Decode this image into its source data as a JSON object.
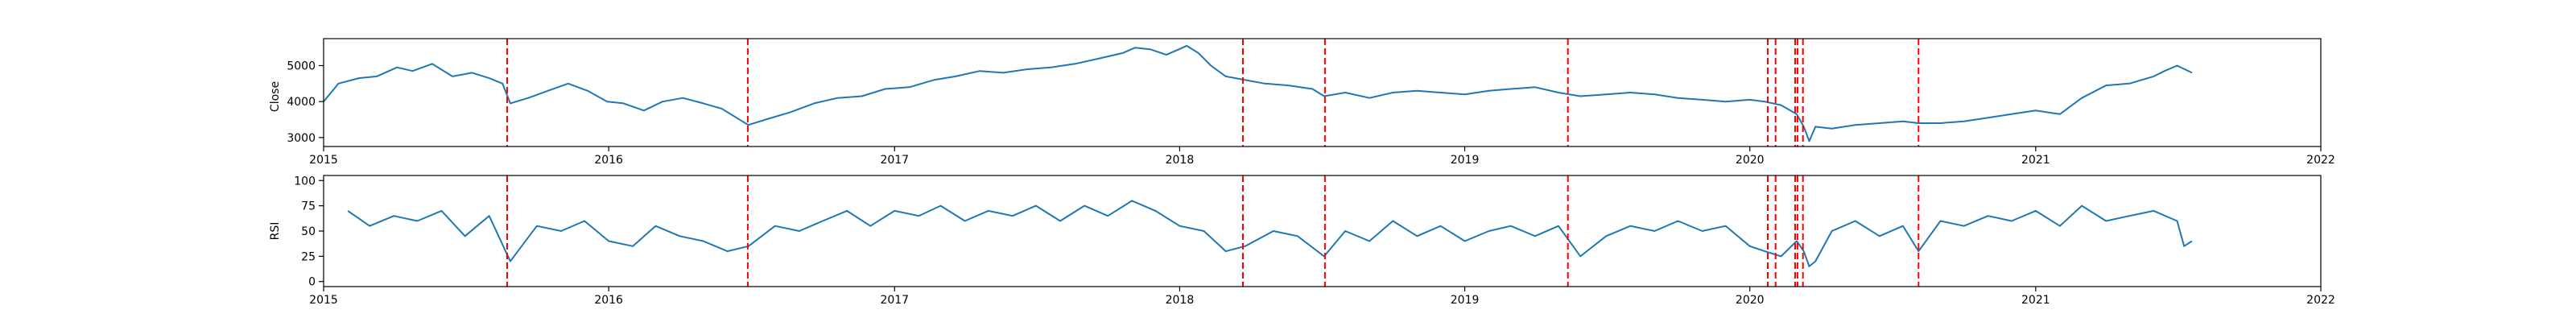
{
  "chart_data": [
    {
      "type": "line",
      "ylabel": "Close",
      "xlim": [
        "2015-01-01",
        "2022-01-01"
      ],
      "ylim": [
        2750,
        5750
      ],
      "x_ticks": [
        "2015",
        "2016",
        "2017",
        "2018",
        "2019",
        "2020",
        "2021",
        "2022"
      ],
      "y_ticks": [
        "3000",
        "4000",
        "5000"
      ],
      "line_color": "#1f77b4",
      "grid": false,
      "series": [
        {
          "x": [
            "2015-01-01",
            "2015-01-20",
            "2015-02-15",
            "2015-03-10",
            "2015-04-05",
            "2015-04-25",
            "2015-05-20",
            "2015-06-15",
            "2015-07-10",
            "2015-08-01",
            "2015-08-18",
            "2015-08-28",
            "2015-09-20",
            "2015-10-15",
            "2015-11-10",
            "2015-12-05",
            "2015-12-30",
            "2016-01-20",
            "2016-02-15",
            "2016-03-10",
            "2016-04-05",
            "2016-05-01",
            "2016-05-25",
            "2016-06-20",
            "2016-06-28",
            "2016-07-20",
            "2016-08-20",
            "2016-09-20",
            "2016-10-20",
            "2016-11-20",
            "2016-12-20",
            "2017-01-20",
            "2017-02-20",
            "2017-03-20",
            "2017-04-20",
            "2017-05-20",
            "2017-06-20",
            "2017-07-20",
            "2017-08-20",
            "2017-09-20",
            "2017-10-20",
            "2017-11-05",
            "2017-11-25",
            "2017-12-15",
            "2018-01-10",
            "2018-01-25",
            "2018-02-10",
            "2018-03-01",
            "2018-03-26",
            "2018-04-20",
            "2018-05-20",
            "2018-06-20",
            "2018-07-05",
            "2018-08-01",
            "2018-09-01",
            "2018-10-01",
            "2018-11-01",
            "2018-12-01",
            "2019-01-01",
            "2019-02-01",
            "2019-03-01",
            "2019-04-01",
            "2019-05-01",
            "2019-05-29",
            "2019-07-01",
            "2019-08-01",
            "2019-09-01",
            "2019-10-01",
            "2019-11-01",
            "2019-12-01",
            "2020-01-01",
            "2020-01-20",
            "2020-02-10",
            "2020-03-01",
            "2020-03-10",
            "2020-03-17",
            "2020-03-25",
            "2020-04-15",
            "2020-05-15",
            "2020-06-15",
            "2020-07-15",
            "2020-08-04",
            "2020-09-01",
            "2020-10-01",
            "2020-11-01",
            "2020-12-01",
            "2021-01-01",
            "2021-02-01",
            "2021-03-01",
            "2021-04-01",
            "2021-05-01",
            "2021-06-01",
            "2021-06-15",
            "2021-07-01",
            "2021-07-20"
          ],
          "y": [
            4000,
            4500,
            4650,
            4700,
            4950,
            4850,
            5050,
            4700,
            4800,
            4650,
            4500,
            3950,
            4100,
            4300,
            4500,
            4300,
            4000,
            3950,
            3750,
            4000,
            4100,
            3950,
            3800,
            3450,
            3350,
            3500,
            3700,
            3950,
            4100,
            4150,
            4350,
            4400,
            4600,
            4700,
            4850,
            4800,
            4900,
            4950,
            5050,
            5200,
            5350,
            5500,
            5450,
            5300,
            5550,
            5350,
            5000,
            4700,
            4600,
            4500,
            4450,
            4350,
            4150,
            4250,
            4100,
            4250,
            4300,
            4250,
            4200,
            4300,
            4350,
            4400,
            4250,
            4150,
            4200,
            4250,
            4200,
            4100,
            4050,
            4000,
            4050,
            4000,
            3900,
            3650,
            3300,
            2900,
            3300,
            3250,
            3350,
            3400,
            3450,
            3400,
            3400,
            3450,
            3550,
            3650,
            3750,
            3650,
            4100,
            4450,
            4500,
            4700,
            4850,
            5000,
            4800
          ]
        }
      ]
    },
    {
      "type": "line",
      "ylabel": "RSI",
      "xlim": [
        "2015-01-01",
        "2022-01-01"
      ],
      "ylim": [
        -5,
        105
      ],
      "x_ticks": [
        "2015",
        "2016",
        "2017",
        "2018",
        "2019",
        "2020",
        "2021",
        "2022"
      ],
      "y_ticks": [
        "0",
        "25",
        "50",
        "75",
        "100"
      ],
      "line_color": "#1f77b4",
      "grid": false,
      "series": [
        {
          "x": [
            "2015-02-01",
            "2015-03-01",
            "2015-04-01",
            "2015-05-01",
            "2015-06-01",
            "2015-07-01",
            "2015-08-01",
            "2015-08-28",
            "2015-10-01",
            "2015-11-01",
            "2015-12-01",
            "2016-01-01",
            "2016-02-01",
            "2016-03-01",
            "2016-04-01",
            "2016-05-01",
            "2016-06-01",
            "2016-06-28",
            "2016-08-01",
            "2016-09-01",
            "2016-10-01",
            "2016-11-01",
            "2016-12-01",
            "2017-01-01",
            "2017-02-01",
            "2017-03-01",
            "2017-04-01",
            "2017-05-01",
            "2017-06-01",
            "2017-07-01",
            "2017-08-01",
            "2017-09-01",
            "2017-10-01",
            "2017-11-01",
            "2017-12-01",
            "2018-01-01",
            "2018-02-01",
            "2018-03-01",
            "2018-03-26",
            "2018-05-01",
            "2018-06-01",
            "2018-07-05",
            "2018-08-01",
            "2018-09-01",
            "2018-10-01",
            "2018-11-01",
            "2018-12-01",
            "2019-01-01",
            "2019-02-01",
            "2019-03-01",
            "2019-04-01",
            "2019-05-01",
            "2019-05-29",
            "2019-07-01",
            "2019-08-01",
            "2019-09-01",
            "2019-10-01",
            "2019-11-01",
            "2019-12-01",
            "2020-01-01",
            "2020-01-20",
            "2020-02-10",
            "2020-03-01",
            "2020-03-10",
            "2020-03-17",
            "2020-03-25",
            "2020-04-15",
            "2020-05-15",
            "2020-06-15",
            "2020-07-15",
            "2020-08-04",
            "2020-09-01",
            "2020-10-01",
            "2020-11-01",
            "2020-12-01",
            "2021-01-01",
            "2021-02-01",
            "2021-03-01",
            "2021-04-01",
            "2021-05-01",
            "2021-06-01",
            "2021-07-01",
            "2021-07-10",
            "2021-07-20"
          ],
          "y": [
            70,
            55,
            65,
            60,
            70,
            45,
            65,
            20,
            55,
            50,
            60,
            40,
            35,
            55,
            45,
            40,
            30,
            35,
            55,
            50,
            60,
            70,
            55,
            70,
            65,
            75,
            60,
            70,
            65,
            75,
            60,
            75,
            65,
            80,
            70,
            55,
            50,
            30,
            35,
            50,
            45,
            25,
            50,
            40,
            60,
            45,
            55,
            40,
            50,
            55,
            45,
            55,
            25,
            45,
            55,
            50,
            60,
            50,
            55,
            35,
            30,
            25,
            40,
            30,
            15,
            20,
            50,
            60,
            45,
            55,
            30,
            60,
            55,
            65,
            60,
            70,
            55,
            75,
            60,
            65,
            70,
            60,
            35,
            40
          ]
        }
      ]
    }
  ],
  "shared_events": {
    "style": "dashed",
    "color": "#ff0000",
    "dates": [
      "2015-08-24",
      "2016-06-27",
      "2018-03-23",
      "2018-07-06",
      "2019-05-13",
      "2020-01-24",
      "2020-02-03",
      "2020-02-28",
      "2020-03-02",
      "2020-03-09",
      "2020-08-04"
    ]
  }
}
